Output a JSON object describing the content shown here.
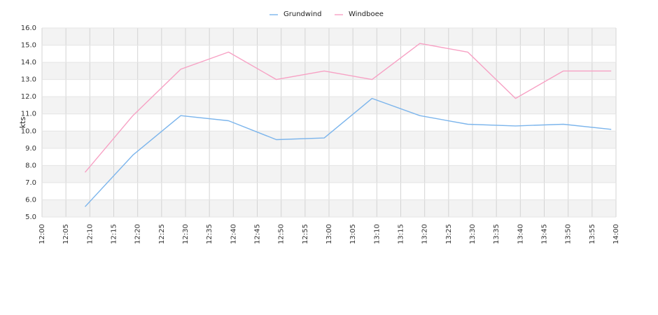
{
  "chart_data": {
    "type": "line",
    "title": "",
    "xlabel": "",
    "ylabel": "kts",
    "ylim": [
      5.0,
      16.0
    ],
    "x_ticks": [
      "12:00",
      "12:05",
      "12:10",
      "12:15",
      "12:20",
      "12:25",
      "12:30",
      "12:35",
      "12:40",
      "12:45",
      "12:50",
      "12:55",
      "13:00",
      "13:05",
      "13:10",
      "13:15",
      "13:20",
      "13:25",
      "13:30",
      "13:35",
      "13:40",
      "13:45",
      "13:50",
      "13:55",
      "14:00"
    ],
    "y_ticks": [
      "5.0",
      "6.0",
      "7.0",
      "8.0",
      "9.0",
      "10.0",
      "11.0",
      "12.0",
      "13.0",
      "14.0",
      "15.0",
      "16.0"
    ],
    "x": [
      "12:09",
      "12:19",
      "12:29",
      "12:39",
      "12:49",
      "12:59",
      "13:09",
      "13:19",
      "13:29",
      "13:39",
      "13:49",
      "13:59"
    ],
    "series": [
      {
        "name": "Grundwind",
        "color": "#7cb5ec",
        "values": [
          5.6,
          8.6,
          10.9,
          10.6,
          9.5,
          9.6,
          11.9,
          10.9,
          10.4,
          10.3,
          10.4,
          10.1
        ]
      },
      {
        "name": "Windboee",
        "color": "#f7a1c4",
        "values": [
          7.6,
          10.9,
          13.6,
          14.6,
          13.0,
          13.5,
          13.0,
          15.1,
          14.6,
          11.9,
          13.5,
          13.5
        ]
      }
    ],
    "grid": true,
    "legend_position": "top-center"
  }
}
